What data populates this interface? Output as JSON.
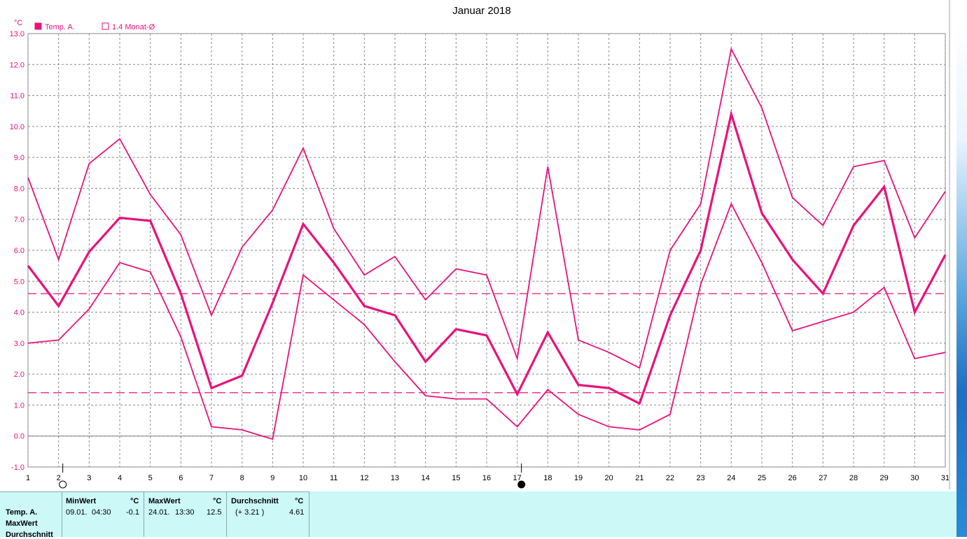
{
  "chart_data": {
    "type": "line",
    "title": "Januar 2018",
    "ylabel": "°C",
    "x": [
      1,
      2,
      3,
      4,
      5,
      6,
      7,
      8,
      9,
      10,
      11,
      12,
      13,
      14,
      15,
      16,
      17,
      18,
      19,
      20,
      21,
      22,
      23,
      24,
      25,
      26,
      27,
      28,
      29,
      30,
      31
    ],
    "xlim": [
      1,
      31
    ],
    "ylim": [
      -1.0,
      13.0
    ],
    "yticks": [
      "-1.0",
      "0.0",
      "1.0",
      "2.0",
      "3.0",
      "4.0",
      "5.0",
      "6.0",
      "7.0",
      "8.0",
      "9.0",
      "10.0",
      "11.0",
      "12.0",
      "13.0"
    ],
    "xticks": [
      "1",
      "2",
      "3",
      "4",
      "5",
      "6",
      "7",
      "8",
      "9",
      "10",
      "11",
      "12",
      "13",
      "14",
      "15",
      "16",
      "17",
      "18",
      "19",
      "20",
      "21",
      "22",
      "23",
      "24",
      "25",
      "26",
      "27",
      "28",
      "29",
      "30",
      "31"
    ],
    "grid": true,
    "legend": [
      {
        "label": "Temp. A.",
        "marker": "filled-square"
      },
      {
        "label": "1.4 Monat-Ø",
        "marker": "open-square"
      }
    ],
    "series": [
      {
        "name": "Temp. A.",
        "role": "mean",
        "values": [
          5.5,
          4.2,
          5.95,
          7.05,
          6.95,
          4.6,
          1.55,
          1.95,
          4.3,
          6.85,
          5.6,
          4.2,
          3.9,
          2.4,
          3.45,
          3.25,
          1.35,
          3.35,
          1.65,
          1.55,
          1.05,
          3.9,
          6.0,
          10.4,
          7.2,
          5.7,
          4.6,
          6.8,
          8.05,
          4.0,
          5.85
        ]
      },
      {
        "role": "max",
        "values": [
          8.35,
          5.7,
          8.8,
          9.6,
          7.8,
          6.5,
          3.9,
          6.1,
          7.3,
          9.3,
          6.7,
          5.2,
          5.8,
          4.4,
          5.4,
          5.2,
          2.5,
          8.7,
          3.1,
          2.7,
          2.2,
          6.0,
          7.5,
          12.5,
          10.6,
          7.7,
          6.8,
          8.7,
          8.9,
          6.4,
          7.9
        ]
      },
      {
        "role": "min",
        "values": [
          3.0,
          3.1,
          4.1,
          5.6,
          5.3,
          3.2,
          0.3,
          0.2,
          -0.1,
          5.2,
          4.4,
          3.6,
          2.4,
          1.3,
          1.2,
          1.2,
          0.3,
          1.5,
          0.7,
          0.3,
          0.2,
          0.7,
          4.9,
          7.5,
          5.6,
          3.4,
          3.7,
          4.0,
          4.8,
          2.5,
          2.7
        ]
      }
    ],
    "reference_lines": [
      4.6,
      1.4
    ],
    "markers": [
      {
        "x": 2,
        "symbol": "open-circle"
      },
      {
        "x": 17,
        "symbol": "filled-circle"
      }
    ],
    "color": "#e8127c"
  },
  "stats": {
    "row_label_temp": "Temp. A.",
    "row_label_max": "MaxWert",
    "row_label_avg": "Durchschnitt",
    "min_header": "MinWert",
    "max_header": "MaxWert",
    "avg_header": "Durchschnitt",
    "unit": "°C",
    "min_date": "09.01.",
    "min_time": "04:30",
    "min_value": "-0.1",
    "max_date": "24.01.",
    "max_time": "13:30",
    "max_value": "12.5",
    "avg_diff": "(+ 3.21 )",
    "avg_value": "4.61"
  }
}
